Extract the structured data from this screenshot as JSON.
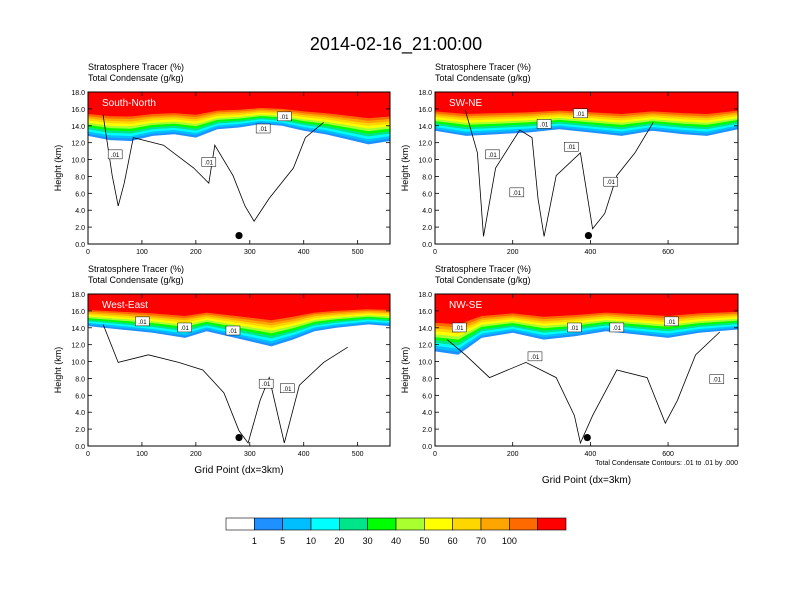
{
  "page": {
    "title": "2014-02-16_21:00:00"
  },
  "chart_data": [
    {
      "type": "heatmap",
      "panel_label": "South-North",
      "title_lines": [
        "Stratosphere Tracer   (%)",
        "Total Condensate   (g/kg)"
      ],
      "xlabel": "",
      "ylabel": "Height (km)",
      "xlim": [
        0,
        560
      ],
      "ylim": [
        0,
        18
      ],
      "xticks": [
        "0",
        "100",
        "200",
        "300",
        "400",
        "500"
      ],
      "xtick_values": [
        0,
        100,
        200,
        300,
        400,
        500
      ],
      "yticks": [
        "0.0",
        "2.0",
        "4.0",
        "6.0",
        "8.0",
        "10.0",
        "12.0",
        "14.0",
        "16.0",
        "18.0"
      ],
      "marker": {
        "x": 280,
        "y": 1.0
      },
      "contour_labels": [
        ".01",
        ".01",
        ".01",
        ".01"
      ],
      "tracer_bottom_km": [
        [
          0,
          12.8
        ],
        [
          40,
          12.3
        ],
        [
          80,
          12.2
        ],
        [
          120,
          12.8
        ],
        [
          160,
          13.0
        ],
        [
          200,
          12.6
        ],
        [
          240,
          13.6
        ],
        [
          280,
          13.8
        ],
        [
          320,
          14.2
        ],
        [
          360,
          14.0
        ],
        [
          400,
          13.4
        ],
        [
          440,
          13.0
        ],
        [
          480,
          12.4
        ],
        [
          520,
          11.8
        ],
        [
          560,
          12.2
        ]
      ]
    },
    {
      "type": "heatmap",
      "panel_label": "SW-NE",
      "title_lines": [
        "Stratosphere Tracer   (%)",
        "Total Condensate   (g/kg)"
      ],
      "xlabel": "",
      "ylabel": "Height (km)",
      "xlim": [
        0,
        780
      ],
      "ylim": [
        0,
        18
      ],
      "xticks": [
        "0",
        "200",
        "400",
        "600"
      ],
      "xtick_values": [
        0,
        200,
        400,
        600
      ],
      "yticks": [
        "0.0",
        "2.0",
        "4.0",
        "6.0",
        "8.0",
        "10.0",
        "12.0",
        "14.0",
        "16.0",
        "18.0"
      ],
      "marker": {
        "x": 395,
        "y": 1.0
      },
      "contour_labels": [
        ".01",
        ".01",
        ".01",
        ".01",
        ".01",
        ".01"
      ],
      "tracer_bottom_km": [
        [
          0,
          13.4
        ],
        [
          80,
          12.8
        ],
        [
          160,
          13.0
        ],
        [
          240,
          13.2
        ],
        [
          320,
          13.6
        ],
        [
          400,
          13.2
        ],
        [
          480,
          12.8
        ],
        [
          560,
          13.4
        ],
        [
          640,
          13.0
        ],
        [
          700,
          12.8
        ],
        [
          780,
          13.6
        ]
      ]
    },
    {
      "type": "heatmap",
      "panel_label": "West-East",
      "title_lines": [
        "Stratosphere Tracer   (%)",
        "Total Condensate   (g/kg)"
      ],
      "xlabel": "Grid Point (dx=3km)",
      "ylabel": "Height (km)",
      "xlim": [
        0,
        560
      ],
      "ylim": [
        0,
        18
      ],
      "xticks": [
        "0",
        "100",
        "200",
        "300",
        "400",
        "500"
      ],
      "xtick_values": [
        0,
        100,
        200,
        300,
        400,
        500
      ],
      "yticks": [
        "0.0",
        "2.0",
        "4.0",
        "6.0",
        "8.0",
        "10.0",
        "12.0",
        "14.0",
        "16.0",
        "18.0"
      ],
      "marker": {
        "x": 280,
        "y": 1.0
      },
      "contour_labels": [
        ".01",
        ".01",
        ".01",
        ".01",
        ".01"
      ],
      "tracer_bottom_km": [
        [
          0,
          14.2
        ],
        [
          60,
          13.8
        ],
        [
          120,
          13.4
        ],
        [
          180,
          12.8
        ],
        [
          220,
          13.6
        ],
        [
          260,
          13.0
        ],
        [
          300,
          12.4
        ],
        [
          340,
          11.8
        ],
        [
          380,
          12.6
        ],
        [
          420,
          13.6
        ],
        [
          460,
          14.0
        ],
        [
          520,
          14.4
        ],
        [
          560,
          14.2
        ]
      ]
    },
    {
      "type": "heatmap",
      "panel_label": "NW-SE",
      "title_lines": [
        "Stratosphere Tracer   (%)",
        "Total Condensate   (g/kg)"
      ],
      "xlabel": "Grid Point (dx=3km)",
      "ylabel": "Height (km)",
      "xlim": [
        0,
        780
      ],
      "ylim": [
        0,
        18
      ],
      "xticks": [
        "0",
        "200",
        "400",
        "600"
      ],
      "xtick_values": [
        0,
        200,
        400,
        600
      ],
      "yticks": [
        "0.0",
        "2.0",
        "4.0",
        "6.0",
        "8.0",
        "10.0",
        "12.0",
        "14.0",
        "16.0",
        "18.0"
      ],
      "marker": {
        "x": 392,
        "y": 1.0
      },
      "contour_labels": [
        ".01",
        ".01",
        ".01",
        ".01",
        ".01",
        ".01"
      ],
      "annotation": "Total Condensate Contours: .01 to .01 by .000",
      "tracer_bottom_km": [
        [
          0,
          11.2
        ],
        [
          60,
          10.8
        ],
        [
          120,
          12.8
        ],
        [
          200,
          13.4
        ],
        [
          280,
          12.6
        ],
        [
          360,
          13.0
        ],
        [
          440,
          13.6
        ],
        [
          520,
          13.2
        ],
        [
          600,
          12.8
        ],
        [
          680,
          13.4
        ],
        [
          780,
          13.8
        ]
      ]
    }
  ],
  "colorbar": {
    "labels": [
      "1",
      "5",
      "10",
      "20",
      "30",
      "40",
      "50",
      "60",
      "70",
      "100"
    ],
    "colors": [
      "#ffffff",
      "#1e90ff",
      "#00bfff",
      "#00ffff",
      "#00e589",
      "#00ff00",
      "#aaff2f",
      "#ffff00",
      "#ffd700",
      "#ffa500",
      "#ff6a00",
      "#ff0000"
    ]
  },
  "palette": {
    "band_colors": [
      "#1e90ff",
      "#00bfff",
      "#00ffff",
      "#00e589",
      "#00ff00",
      "#aaff2f",
      "#ffff00",
      "#ffd700",
      "#ffa500",
      "#ff6a00",
      "#ff0000"
    ],
    "contour": "#000000",
    "panel_label": "#ffffff"
  }
}
